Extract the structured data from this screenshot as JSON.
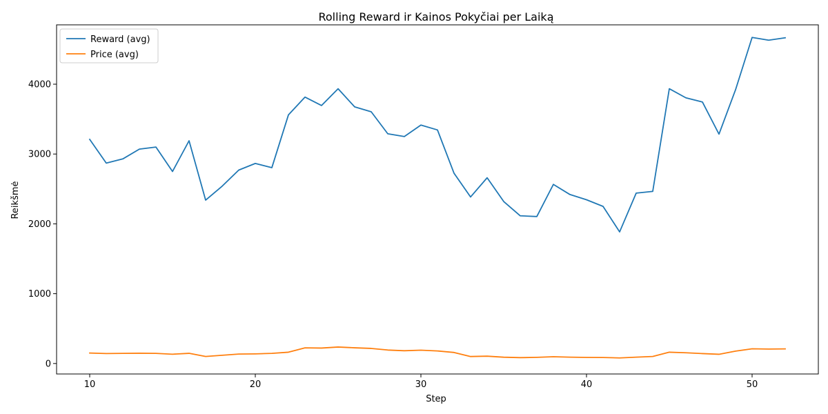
{
  "chart_data": {
    "type": "line",
    "title": "Rolling Reward ir Kainos Pokyčiai per Laiką",
    "xlabel": "Step",
    "ylabel": "Reikšmė",
    "xlim": [
      8,
      54
    ],
    "ylim": [
      -150,
      4850
    ],
    "xticks": [
      10,
      20,
      30,
      40,
      50
    ],
    "yticks": [
      0,
      1000,
      2000,
      3000,
      4000
    ],
    "grid": false,
    "legend": "top-left",
    "x": [
      10,
      11,
      12,
      13,
      14,
      15,
      16,
      17,
      18,
      19,
      20,
      21,
      22,
      23,
      24,
      25,
      26,
      27,
      28,
      29,
      30,
      31,
      32,
      33,
      34,
      35,
      36,
      37,
      38,
      39,
      40,
      41,
      42,
      43,
      44,
      45,
      46,
      47,
      48,
      49,
      50,
      51,
      52
    ],
    "series": [
      {
        "name": "Reward (avg)",
        "color": "#1f77b4",
        "values": [
          3210,
          2870,
          2930,
          3070,
          3100,
          2750,
          3190,
          2340,
          2540,
          2770,
          2865,
          2805,
          3560,
          3815,
          3695,
          3935,
          3675,
          3605,
          3290,
          3250,
          3415,
          3345,
          2725,
          2385,
          2660,
          2320,
          2115,
          2105,
          2565,
          2420,
          2345,
          2250,
          1885,
          2440,
          2465,
          3935,
          3805,
          3745,
          3285,
          3920,
          4670,
          4630,
          4665
        ]
      },
      {
        "name": "Price (avg)",
        "color": "#ff7f0e",
        "values": [
          150,
          143,
          145,
          147,
          145,
          133,
          146,
          101,
          118,
          135,
          138,
          145,
          162,
          224,
          221,
          236,
          225,
          216,
          193,
          183,
          191,
          180,
          158,
          100,
          105,
          90,
          84,
          88,
          97,
          91,
          87,
          86,
          80,
          91,
          101,
          162,
          154,
          142,
          132,
          177,
          211,
          207,
          209
        ]
      }
    ]
  }
}
